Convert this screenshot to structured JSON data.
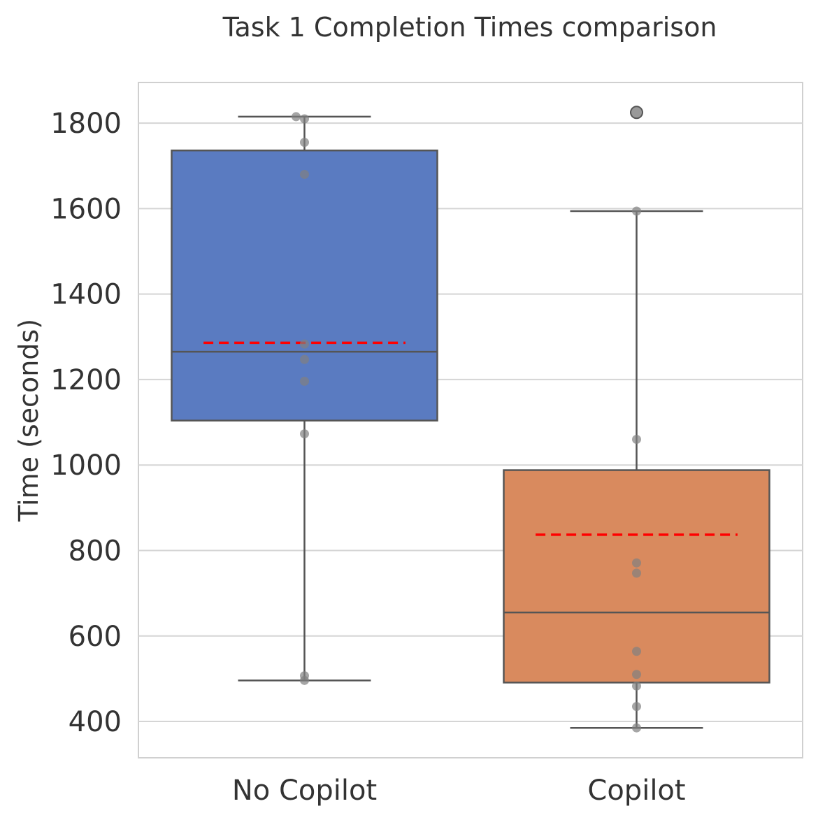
{
  "chart_data": {
    "type": "box",
    "title": "Task 1 Completion Times comparison",
    "xlabel": "",
    "ylabel": "Time (seconds)",
    "categories": [
      "No Copilot",
      "Copilot"
    ],
    "ylim": [
      315,
      1895
    ],
    "yticks": [
      400,
      600,
      800,
      1000,
      1200,
      1400,
      1600,
      1800
    ],
    "grid": true,
    "colors": {
      "boxes": [
        "#5a7bc1",
        "#d98a5e"
      ],
      "box_edge": "#555555",
      "mean_line": "#ff0000",
      "points": "#808080",
      "grid": "#d5d5d5"
    },
    "series": [
      {
        "category": "No Copilot",
        "whisker_low": 496,
        "q1": 1104,
        "median": 1265,
        "q3": 1736,
        "whisker_high": 1815,
        "mean": 1286,
        "points": [
          1815,
          1810,
          1755,
          1680,
          1283,
          1247,
          1196,
          1073,
          507,
          496
        ],
        "outliers": []
      },
      {
        "category": "Copilot",
        "whisker_low": 385,
        "q1": 491,
        "median": 655,
        "q3": 988,
        "whisker_high": 1594,
        "mean": 837,
        "points": [
          1594,
          1060,
          771,
          747,
          564,
          510,
          483,
          435,
          385
        ],
        "outliers": [
          1825
        ]
      }
    ]
  }
}
